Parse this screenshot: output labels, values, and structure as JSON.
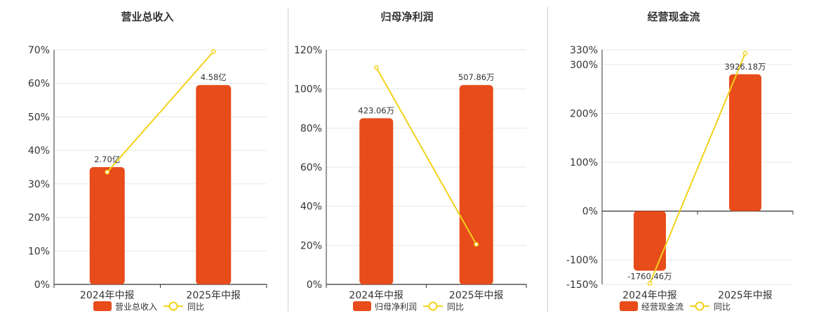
{
  "chart_data": [
    {
      "type": "bar",
      "title": "营业总收入",
      "categories": [
        "2024年中报",
        "2025年中报"
      ],
      "series": [
        {
          "name": "营业总收入",
          "kind": "bar",
          "values": [
            35,
            59.5
          ],
          "labels": [
            "2.70亿",
            "4.58亿"
          ]
        },
        {
          "name": "同比",
          "kind": "line",
          "values": [
            33.5,
            69.5
          ]
        }
      ],
      "ylim": [
        0,
        70
      ],
      "yticks": [
        "0%",
        "10%",
        "20%",
        "30%",
        "40%",
        "50%",
        "60%",
        "70%"
      ],
      "grid": true,
      "legend": "bottom"
    },
    {
      "type": "bar",
      "title": "归母净利润",
      "categories": [
        "2024年中报",
        "2025年中报"
      ],
      "series": [
        {
          "name": "归母净利润",
          "kind": "bar",
          "values": [
            85,
            102
          ],
          "labels": [
            "423.06万",
            "507.86万"
          ]
        },
        {
          "name": "同比",
          "kind": "line",
          "values": [
            111,
            20.5
          ]
        }
      ],
      "ylim": [
        0,
        120
      ],
      "yticks": [
        "0%",
        "20%",
        "40%",
        "60%",
        "80%",
        "100%",
        "120%"
      ],
      "grid": true,
      "legend": "bottom"
    },
    {
      "type": "bar",
      "title": "经营现金流",
      "categories": [
        "2024年中报",
        "2025年中报"
      ],
      "series": [
        {
          "name": "经营现金流",
          "kind": "bar",
          "values": [
            -122,
            280
          ],
          "labels": [
            "-1760.46万",
            "3926.18万"
          ]
        },
        {
          "name": "同比",
          "kind": "line",
          "values": [
            -148,
            323
          ]
        }
      ],
      "ylim": [
        -150,
        330
      ],
      "yticks": [
        "-150%",
        "-100%",
        "0%",
        "100%",
        "200%",
        "300%",
        "330%"
      ],
      "grid": true,
      "legend": "bottom"
    }
  ],
  "colors": {
    "bar": "#e84c1a",
    "line": "#f2d21b",
    "grid": "#e6e6e6",
    "axis": "#333333",
    "text": "#333333"
  }
}
